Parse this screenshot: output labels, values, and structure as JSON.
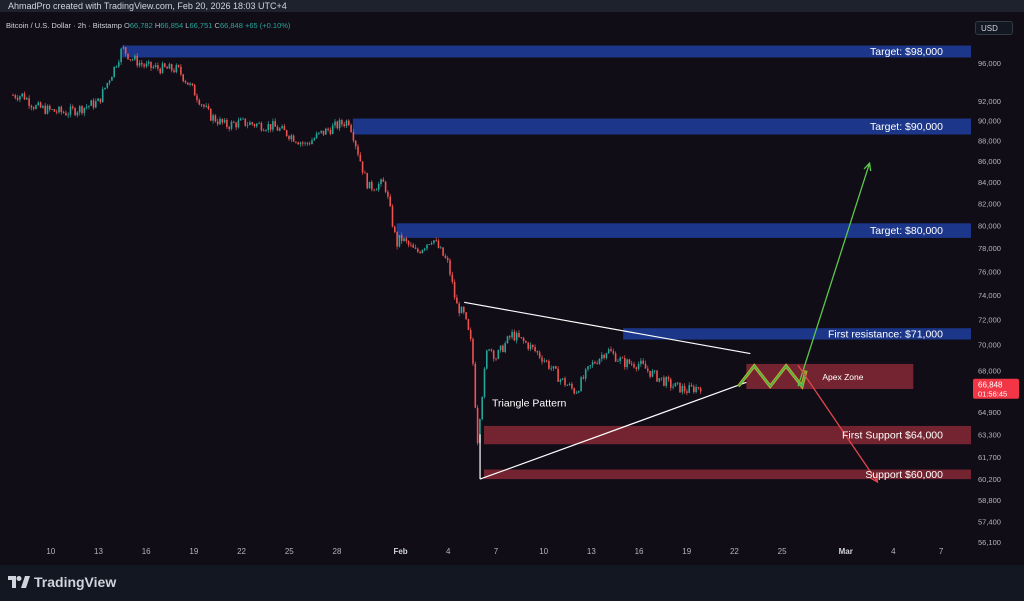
{
  "header": {
    "credit": "AhmadPro created with TradingView.com, Feb 20, 2026 18:03 UTC+4",
    "symbol": "Bitcoin / U.S. Dollar · 2h · Bitstamp",
    "ohlc": [
      {
        "key": "O",
        "value": "66,782"
      },
      {
        "key": "H",
        "value": "66,854"
      },
      {
        "key": "L",
        "value": "66,751"
      },
      {
        "key": "C",
        "value": "66,848"
      }
    ],
    "change": "+65 (+0.10%)",
    "currency_button": "USD"
  },
  "brand": {
    "name": "TradingView"
  },
  "colors": {
    "background": "#100d17",
    "up": "#26a69a",
    "down": "#ef5350",
    "target_zone": "#1d3a8f",
    "support_zone": "#7a2631",
    "up_arrow": "#5cc74c",
    "down_arrow": "#e0474c",
    "triangle": "#ffffff",
    "price_tag": "#f23645"
  },
  "chart_data": {
    "type": "candlestick",
    "title": "Bitcoin / U.S. Dollar · 2h · Bitstamp",
    "y_axis": {
      "scale": "log",
      "ticks": [
        "96,000",
        "92,000",
        "90,000",
        "88,000",
        "86,000",
        "84,000",
        "82,000",
        "80,000",
        "78,000",
        "76,000",
        "74,000",
        "72,000",
        "70,000",
        "68,000",
        "64,900",
        "63,300",
        "61,700",
        "60,200",
        "58,800",
        "57,400",
        "56,100"
      ],
      "tick_values": [
        96000,
        92000,
        90000,
        88000,
        86000,
        84000,
        82000,
        80000,
        78000,
        76000,
        74000,
        72000,
        70000,
        68000,
        64900,
        63300,
        61700,
        60200,
        58800,
        57400,
        56100
      ],
      "range": [
        55000,
        100000
      ]
    },
    "x_axis": {
      "ticks": [
        "10",
        "13",
        "16",
        "19",
        "22",
        "25",
        "28",
        "Feb",
        "4",
        "7",
        "10",
        "13",
        "16",
        "19",
        "22",
        "25",
        "Mar",
        "4",
        "7"
      ],
      "bold_ticks": [
        "Feb",
        "Mar"
      ],
      "date_range": [
        "2026-01-08",
        "2026-03-08"
      ]
    },
    "last_price": {
      "value": "66,848",
      "countdown": "01:56:45"
    },
    "price_path": [
      [
        "2026-01-08T06:00",
        92600
      ],
      [
        "2026-01-09",
        91400
      ],
      [
        "2026-01-10",
        91000
      ],
      [
        "2026-01-11",
        90800
      ],
      [
        "2026-01-12",
        91300
      ],
      [
        "2026-01-13",
        91900
      ],
      [
        "2026-01-14",
        95500
      ],
      [
        "2026-01-14T12:00",
        97600
      ],
      [
        "2026-01-15",
        96600
      ],
      [
        "2026-01-16",
        95600
      ],
      [
        "2026-01-17",
        95400
      ],
      [
        "2026-01-18",
        95300
      ],
      [
        "2026-01-19",
        93000
      ],
      [
        "2026-01-20",
        90500
      ],
      [
        "2026-01-21",
        89500
      ],
      [
        "2026-01-22",
        89800
      ],
      [
        "2026-01-23",
        89600
      ],
      [
        "2026-01-24",
        89400
      ],
      [
        "2026-01-25",
        88600
      ],
      [
        "2026-01-26",
        87600
      ],
      [
        "2026-01-27",
        88700
      ],
      [
        "2026-01-28",
        89500
      ],
      [
        "2026-01-28T18:00",
        90000
      ],
      [
        "2026-01-29",
        88700
      ],
      [
        "2026-01-29T18:00",
        84500
      ],
      [
        "2026-01-30",
        83500
      ],
      [
        "2026-01-31",
        83900
      ],
      [
        "2026-01-31T18:00",
        78300
      ],
      [
        "2026-02-01",
        78900
      ],
      [
        "2026-02-02",
        77600
      ],
      [
        "2026-02-03",
        78900
      ],
      [
        "2026-02-04",
        76600
      ],
      [
        "2026-02-04T12:00",
        73200
      ],
      [
        "2026-02-05",
        72300
      ],
      [
        "2026-02-05T12:00",
        69700
      ],
      [
        "2026-02-05T20:00",
        62800
      ],
      [
        "2026-02-06",
        64900
      ],
      [
        "2026-02-06T12:00",
        70100
      ],
      [
        "2026-02-07",
        69000
      ],
      [
        "2026-02-08",
        70800
      ],
      [
        "2026-02-09",
        70000
      ],
      [
        "2026-02-10",
        68900
      ],
      [
        "2026-02-11",
        67400
      ],
      [
        "2026-02-12",
        66400
      ],
      [
        "2026-02-13",
        68400
      ],
      [
        "2026-02-14",
        69600
      ],
      [
        "2026-02-15",
        68600
      ],
      [
        "2026-02-16",
        68500
      ],
      [
        "2026-02-17",
        67600
      ],
      [
        "2026-02-18",
        66900
      ],
      [
        "2026-02-19",
        66500
      ],
      [
        "2026-02-20",
        66848
      ]
    ],
    "zones": [
      {
        "label": "Target: $98,000",
        "from": 96600,
        "to": 97900,
        "kind": "target",
        "x_range": [
          "2026-01-14T12:00",
          "2026-03-09T12:00"
        ]
      },
      {
        "label": "Target: $90,000",
        "from": 88600,
        "to": 90200,
        "kind": "target",
        "x_range": [
          "2026-01-29",
          "2026-03-09T12:00"
        ]
      },
      {
        "label": "Target: $80,000",
        "from": 78900,
        "to": 80200,
        "kind": "target",
        "x_range": [
          "2026-01-31T18:00",
          "2026-03-09T12:00"
        ]
      },
      {
        "label": "First resistance: $71,000",
        "from": 70400,
        "to": 71300,
        "kind": "target",
        "x_range": [
          "2026-02-15",
          "2026-03-09T12:00"
        ]
      },
      {
        "label": "Apex Zone",
        "from": 66600,
        "to": 68500,
        "kind": "support",
        "x_range": [
          "2026-02-22T18:00",
          "2026-03-05T06:00"
        ]
      },
      {
        "label": "First Support $64,000",
        "from": 62600,
        "to": 63900,
        "kind": "support",
        "x_range": [
          "2026-02-06T06:00",
          "2026-03-09T12:00"
        ]
      },
      {
        "label": "Support $60,000",
        "from": 60200,
        "to": 60850,
        "kind": "support",
        "x_range": [
          "2026-02-06T06:00",
          "2026-03-09T12:00"
        ]
      }
    ],
    "annotations": [
      {
        "text": "Triangle Pattern",
        "at": [
          "2026-02-06T18:00",
          65300
        ]
      }
    ],
    "triangle": {
      "upper": [
        [
          "2026-02-05",
          73400
        ],
        [
          "2026-02-23",
          69300
        ]
      ],
      "lower": [
        [
          "2026-02-06",
          60200
        ],
        [
          "2026-02-22T18:00",
          67100
        ]
      ]
    },
    "apex_zigzag": [
      [
        "2026-02-22T06:00",
        66800
      ],
      [
        "2026-02-23T06:00",
        68350
      ],
      [
        "2026-02-24T06:00",
        66800
      ],
      [
        "2026-02-25T06:00",
        68350
      ],
      [
        "2026-02-26T06:00",
        66800
      ],
      [
        "2026-02-26T12:00",
        68000
      ]
    ],
    "scenario_arrows": [
      {
        "direction": "up",
        "from": [
          "2026-02-26",
          66800
        ],
        "to": [
          "2026-03-02T12:00",
          85800
        ]
      },
      {
        "direction": "down",
        "from": [
          "2026-02-26",
          68400
        ],
        "to": [
          "2026-03-03",
          60000
        ]
      }
    ]
  }
}
